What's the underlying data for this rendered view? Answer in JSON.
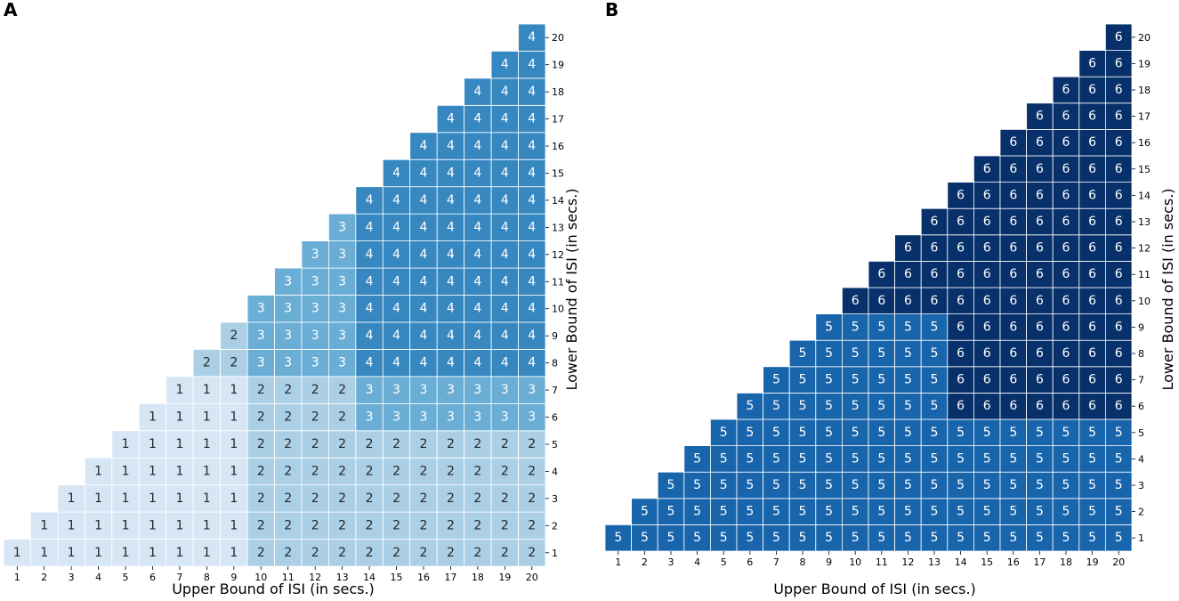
{
  "chart_data": [
    {
      "panel": "A",
      "type": "heatmap",
      "title": "",
      "xlabel": "Upper Bound of ISI (in secs.)",
      "ylabel": "Lower Bound of ISI (in secs.)",
      "x_ticks": [
        1,
        2,
        3,
        4,
        5,
        6,
        7,
        8,
        9,
        10,
        11,
        12,
        13,
        14,
        15,
        16,
        17,
        18,
        19,
        20
      ],
      "y_ticks": [
        1,
        2,
        3,
        4,
        5,
        6,
        7,
        8,
        9,
        10,
        11,
        12,
        13,
        14,
        15,
        16,
        17,
        18,
        19,
        20
      ],
      "value_rule": "cell shown where upper >= lower",
      "rows": [
        {
          "lower": 1,
          "values": [
            1,
            1,
            1,
            1,
            1,
            1,
            1,
            1,
            1,
            2,
            2,
            2,
            2,
            2,
            2,
            2,
            2,
            2,
            2,
            2
          ]
        },
        {
          "lower": 2,
          "values": [
            1,
            1,
            1,
            1,
            1,
            1,
            1,
            1,
            2,
            2,
            2,
            2,
            2,
            2,
            2,
            2,
            2,
            2,
            2
          ]
        },
        {
          "lower": 3,
          "values": [
            1,
            1,
            1,
            1,
            1,
            1,
            1,
            2,
            2,
            2,
            2,
            2,
            2,
            2,
            2,
            2,
            2,
            2
          ]
        },
        {
          "lower": 4,
          "values": [
            1,
            1,
            1,
            1,
            1,
            1,
            2,
            2,
            2,
            2,
            2,
            2,
            2,
            2,
            2,
            2,
            2
          ]
        },
        {
          "lower": 5,
          "values": [
            1,
            1,
            1,
            1,
            1,
            2,
            2,
            2,
            2,
            2,
            2,
            2,
            2,
            2,
            2,
            2
          ]
        },
        {
          "lower": 6,
          "values": [
            1,
            1,
            1,
            1,
            2,
            2,
            2,
            2,
            3,
            3,
            3,
            3,
            3,
            3,
            3
          ]
        },
        {
          "lower": 7,
          "values": [
            1,
            1,
            1,
            2,
            2,
            2,
            2,
            3,
            3,
            3,
            3,
            3,
            3,
            3
          ]
        },
        {
          "lower": 8,
          "values": [
            2,
            2,
            3,
            3,
            3,
            3,
            4,
            4,
            4,
            4,
            4,
            4,
            4
          ]
        },
        {
          "lower": 9,
          "values": [
            2,
            3,
            3,
            3,
            3,
            4,
            4,
            4,
            4,
            4,
            4,
            4
          ]
        },
        {
          "lower": 10,
          "values": [
            3,
            3,
            3,
            3,
            4,
            4,
            4,
            4,
            4,
            4,
            4
          ]
        },
        {
          "lower": 11,
          "values": [
            3,
            3,
            3,
            4,
            4,
            4,
            4,
            4,
            4,
            4
          ]
        },
        {
          "lower": 12,
          "values": [
            3,
            3,
            4,
            4,
            4,
            4,
            4,
            4,
            4
          ]
        },
        {
          "lower": 13,
          "values": [
            3,
            4,
            4,
            4,
            4,
            4,
            4,
            4
          ]
        },
        {
          "lower": 14,
          "values": [
            4,
            4,
            4,
            4,
            4,
            4,
            4
          ]
        },
        {
          "lower": 15,
          "values": [
            4,
            4,
            4,
            4,
            4,
            4
          ]
        },
        {
          "lower": 16,
          "values": [
            4,
            4,
            4,
            4,
            4
          ]
        },
        {
          "lower": 17,
          "values": [
            4,
            4,
            4,
            4
          ]
        },
        {
          "lower": 18,
          "values": [
            4,
            4,
            4
          ]
        },
        {
          "lower": 19,
          "values": [
            4,
            4
          ]
        },
        {
          "lower": 20,
          "values": [
            4
          ]
        }
      ],
      "colors": {
        "1": "#d6e6f4",
        "2": "#abd0e6",
        "3": "#6aaed6",
        "4": "#3787c0"
      },
      "text_colors": {
        "1": "#262626",
        "2": "#262626",
        "3": "#ffffff",
        "4": "#ffffff"
      }
    },
    {
      "panel": "B",
      "type": "heatmap",
      "title": "",
      "xlabel": "Upper Bound of ISI (in secs.)",
      "ylabel": "Lower Bound of ISI (in secs.)",
      "x_ticks": [
        1,
        2,
        3,
        4,
        5,
        6,
        7,
        8,
        9,
        10,
        11,
        12,
        13,
        14,
        15,
        16,
        17,
        18,
        19,
        20
      ],
      "y_ticks": [
        1,
        2,
        3,
        4,
        5,
        6,
        7,
        8,
        9,
        10,
        11,
        12,
        13,
        14,
        15,
        16,
        17,
        18,
        19,
        20
      ],
      "value_rule": "cell shown where upper >= lower",
      "rows": [
        {
          "lower": 1,
          "values": [
            5,
            5,
            5,
            5,
            5,
            5,
            5,
            5,
            5,
            5,
            5,
            5,
            5,
            5,
            5,
            5,
            5,
            5,
            5,
            5
          ]
        },
        {
          "lower": 2,
          "values": [
            5,
            5,
            5,
            5,
            5,
            5,
            5,
            5,
            5,
            5,
            5,
            5,
            5,
            5,
            5,
            5,
            5,
            5,
            5
          ]
        },
        {
          "lower": 3,
          "values": [
            5,
            5,
            5,
            5,
            5,
            5,
            5,
            5,
            5,
            5,
            5,
            5,
            5,
            5,
            5,
            5,
            5,
            5
          ]
        },
        {
          "lower": 4,
          "values": [
            5,
            5,
            5,
            5,
            5,
            5,
            5,
            5,
            5,
            5,
            5,
            5,
            5,
            5,
            5,
            5,
            5
          ]
        },
        {
          "lower": 5,
          "values": [
            5,
            5,
            5,
            5,
            5,
            5,
            5,
            5,
            5,
            5,
            5,
            5,
            5,
            5,
            5,
            5
          ]
        },
        {
          "lower": 6,
          "values": [
            5,
            5,
            5,
            5,
            5,
            5,
            5,
            5,
            6,
            6,
            6,
            6,
            6,
            6,
            6
          ]
        },
        {
          "lower": 7,
          "values": [
            5,
            5,
            5,
            5,
            5,
            5,
            5,
            6,
            6,
            6,
            6,
            6,
            6,
            6
          ]
        },
        {
          "lower": 8,
          "values": [
            5,
            5,
            5,
            5,
            5,
            5,
            6,
            6,
            6,
            6,
            6,
            6,
            6
          ]
        },
        {
          "lower": 9,
          "values": [
            5,
            5,
            5,
            5,
            5,
            6,
            6,
            6,
            6,
            6,
            6,
            6
          ]
        },
        {
          "lower": 10,
          "values": [
            6,
            6,
            6,
            6,
            6,
            6,
            6,
            6,
            6,
            6,
            6
          ]
        },
        {
          "lower": 11,
          "values": [
            6,
            6,
            6,
            6,
            6,
            6,
            6,
            6,
            6,
            6
          ]
        },
        {
          "lower": 12,
          "values": [
            6,
            6,
            6,
            6,
            6,
            6,
            6,
            6,
            6
          ]
        },
        {
          "lower": 13,
          "values": [
            6,
            6,
            6,
            6,
            6,
            6,
            6,
            6
          ]
        },
        {
          "lower": 14,
          "values": [
            6,
            6,
            6,
            6,
            6,
            6,
            6
          ]
        },
        {
          "lower": 15,
          "values": [
            6,
            6,
            6,
            6,
            6,
            6
          ]
        },
        {
          "lower": 16,
          "values": [
            6,
            6,
            6,
            6,
            6
          ]
        },
        {
          "lower": 17,
          "values": [
            6,
            6,
            6,
            6
          ]
        },
        {
          "lower": 18,
          "values": [
            6,
            6,
            6
          ]
        },
        {
          "lower": 19,
          "values": [
            6,
            6
          ]
        },
        {
          "lower": 20,
          "values": [
            6
          ]
        }
      ],
      "colors": {
        "5": "#1865ac",
        "6": "#08306b"
      },
      "text_colors": {
        "5": "#ffffff",
        "6": "#ffffff"
      }
    }
  ],
  "cell_border_color": "#ffffff"
}
